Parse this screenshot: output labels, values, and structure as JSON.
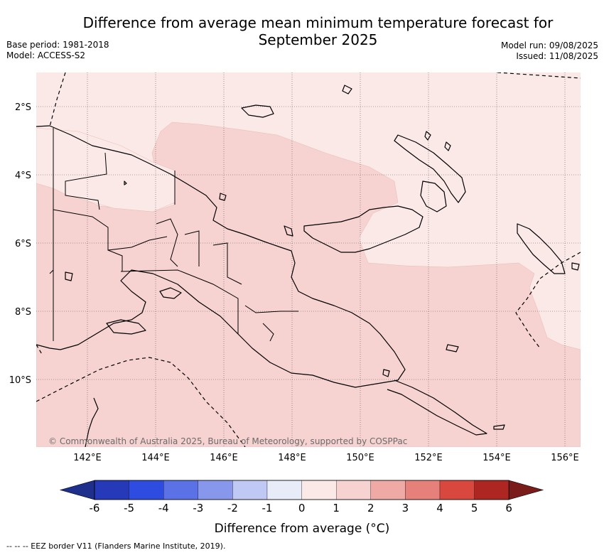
{
  "header": {
    "title_line1": "Difference from average mean minimum temperature forecast for",
    "title_line2": "September 2025",
    "base_period": "Base period: 1981-2018",
    "model": "Model: ACCESS-S2",
    "model_run": "Model run: 09/08/2025",
    "issued": "Issued: 11/08/2025"
  },
  "map": {
    "lat_labels": [
      "2°S",
      "4°S",
      "6°S",
      "8°S",
      "10°S"
    ],
    "lon_labels": [
      "142°E",
      "144°E",
      "146°E",
      "148°E",
      "150°E",
      "152°E",
      "154°E",
      "156°E"
    ],
    "copyright": "© Commonwealth of Australia 2025, Bureau of Meteorology, supported by COSPPac"
  },
  "colorbar": {
    "title": "Difference from average (°C)",
    "tick_labels": [
      "-6",
      "-5",
      "-4",
      "-3",
      "-2",
      "-1",
      "0",
      "1",
      "2",
      "3",
      "4",
      "5",
      "6"
    ],
    "colors": [
      "#1e2f8c",
      "#2639b8",
      "#2e4ce0",
      "#5a72e6",
      "#8797ec",
      "#c0c8f4",
      "#e8ecf9",
      "#fbe9e8",
      "#f6d3d1",
      "#efaaa5",
      "#e6807a",
      "#d9483e",
      "#ad2622",
      "#7a1c19"
    ]
  },
  "footer": {
    "eez_legend": "-- -- -- EEZ border V11 (Flanders Marine Institute, 2019)."
  }
}
